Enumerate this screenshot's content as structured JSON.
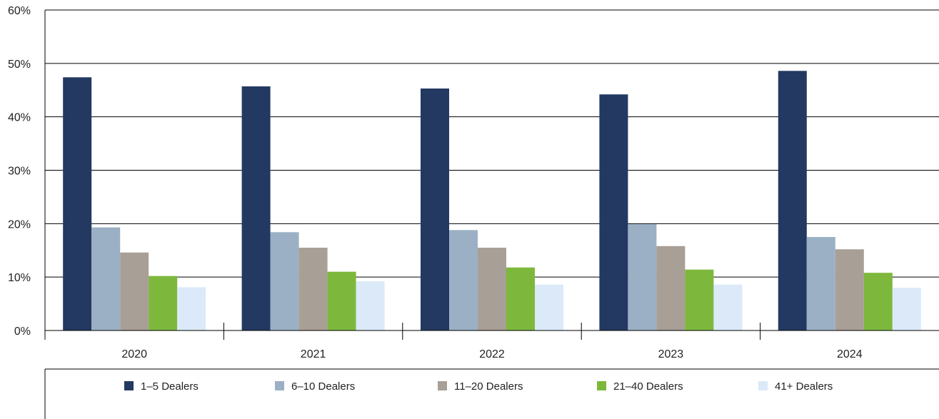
{
  "chart_data": {
    "type": "bar",
    "categories": [
      "2020",
      "2021",
      "2022",
      "2023",
      "2024"
    ],
    "series": [
      {
        "name": "1–5 Dealers",
        "color": "#233962",
        "values": [
          47.4,
          45.7,
          45.3,
          44.2,
          48.6
        ]
      },
      {
        "name": "6–10 Dealers",
        "color": "#9bb0c4",
        "values": [
          19.3,
          18.4,
          18.8,
          19.9,
          17.5
        ]
      },
      {
        "name": "11–20 Dealers",
        "color": "#a89f96",
        "values": [
          14.6,
          15.5,
          15.5,
          15.8,
          15.2
        ]
      },
      {
        "name": "21–40 Dealers",
        "color": "#7db83d",
        "values": [
          10.2,
          11.0,
          11.8,
          11.4,
          10.8
        ]
      },
      {
        "name": "41+ Dealers",
        "color": "#dbe9f8",
        "values": [
          8.1,
          9.2,
          8.6,
          8.6,
          8.0
        ]
      }
    ],
    "ylim": [
      0,
      60
    ],
    "yticks": [
      0,
      10,
      20,
      30,
      40,
      50,
      60
    ],
    "ytick_labels": [
      "0%",
      "10%",
      "20%",
      "30%",
      "40%",
      "50%",
      "60%"
    ],
    "grid": true,
    "legend_position": "bottom",
    "title": "",
    "xlabel": "",
    "ylabel": ""
  }
}
